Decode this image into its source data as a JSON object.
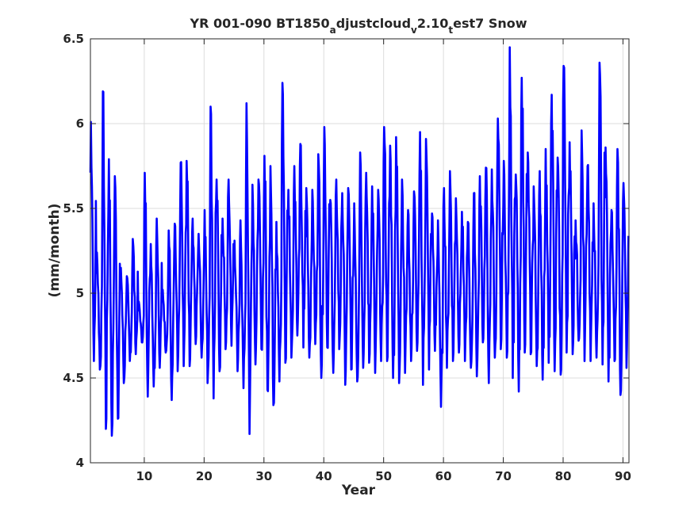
{
  "chart_data": {
    "type": "line",
    "title_parts": [
      {
        "text": "YR 001-090 BT1850",
        "sub": false
      },
      {
        "text": "a",
        "sub": true
      },
      {
        "text": "djustcloud",
        "sub": false
      },
      {
        "text": "v",
        "sub": true
      },
      {
        "text": "2.10",
        "sub": false
      },
      {
        "text": "t",
        "sub": true
      },
      {
        "text": "est7 Snow",
        "sub": false
      }
    ],
    "xlabel": "Year",
    "ylabel": "(mm/month)",
    "xlim": [
      1,
      91
    ],
    "ylim": [
      4,
      6.5
    ],
    "xticks": [
      10,
      20,
      30,
      40,
      50,
      60,
      70,
      80,
      90
    ],
    "yticks": [
      4,
      4.5,
      5,
      5.5,
      6,
      6.5
    ],
    "grid": true,
    "line_color": "#0000ff",
    "series": [
      {
        "x_start": 1,
        "x_step_years": 0.08333,
        "note_kind": "monthly",
        "annual_maxima": [
          6.01,
          5.24,
          6.19,
          5.79,
          5.69,
          5.15,
          5.1,
          5.32,
          4.95,
          5.71,
          5.29,
          5.44,
          5.02,
          5.37,
          5.41,
          5.77,
          5.78,
          5.44,
          5.35,
          5.49,
          6.1,
          5.67,
          5.44,
          5.67,
          5.31,
          5.43,
          6.12,
          5.64,
          5.67,
          5.81,
          5.75,
          5.42,
          6.24,
          5.61,
          5.75,
          5.88,
          5.62,
          5.61,
          5.82,
          5.98,
          5.55,
          5.67,
          5.59,
          5.62,
          5.53,
          5.83,
          5.71,
          5.63,
          5.61,
          5.98,
          5.87,
          5.92,
          5.67,
          5.49,
          5.6,
          5.95,
          5.91,
          5.47,
          5.43,
          5.62,
          5.72,
          5.56,
          5.48,
          5.42,
          5.59,
          5.69,
          5.74,
          5.73,
          6.03,
          5.78,
          6.45,
          5.7,
          6.27,
          5.83,
          5.63,
          5.72,
          5.85,
          6.17,
          5.8,
          6.34,
          5.89,
          5.43,
          5.96,
          5.75,
          5.53,
          6.36,
          5.86,
          5.49,
          5.85,
          5.65
        ],
        "annual_minima": [
          4.6,
          4.55,
          4.2,
          4.16,
          4.26,
          4.47,
          4.6,
          4.64,
          4.71,
          4.39,
          4.45,
          4.56,
          4.65,
          4.37,
          4.54,
          4.57,
          4.57,
          4.7,
          4.62,
          4.47,
          4.38,
          4.54,
          4.67,
          4.69,
          4.54,
          4.44,
          4.17,
          4.58,
          4.67,
          4.43,
          4.34,
          4.48,
          4.59,
          4.62,
          4.75,
          4.68,
          4.62,
          4.7,
          4.5,
          4.68,
          4.53,
          4.67,
          4.46,
          4.55,
          4.48,
          4.56,
          4.59,
          4.53,
          4.6,
          4.6,
          4.5,
          4.47,
          4.53,
          4.6,
          4.66,
          4.46,
          4.55,
          4.66,
          4.33,
          4.56,
          4.6,
          4.65,
          4.6,
          4.56,
          4.51,
          4.71,
          4.47,
          4.62,
          4.67,
          4.62,
          4.5,
          4.42,
          4.65,
          4.64,
          4.57,
          4.49,
          4.59,
          4.54,
          4.52,
          4.65,
          4.64,
          4.72,
          4.6,
          4.6,
          4.62,
          4.58,
          4.48,
          4.6,
          4.4,
          4.56
        ]
      }
    ]
  }
}
